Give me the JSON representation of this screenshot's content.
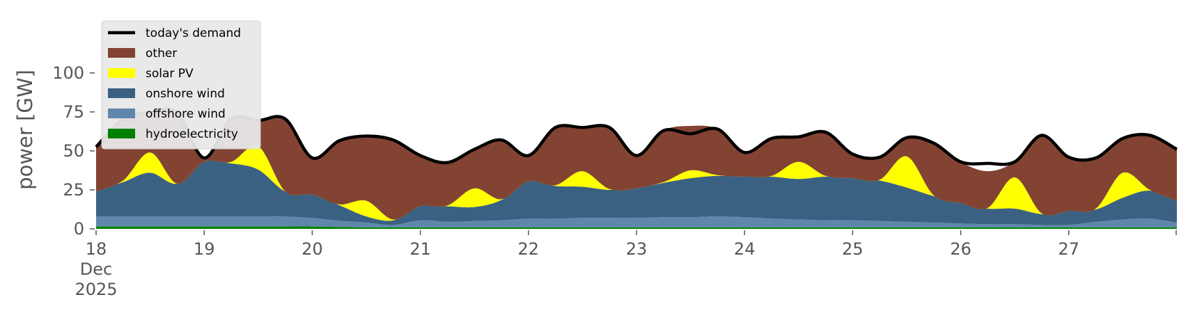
{
  "chart_data": {
    "type": "area",
    "title": "",
    "xlabel": "",
    "ylabel": "power [GW]",
    "ylim": [
      0,
      120
    ],
    "yticks": [
      0,
      25,
      50,
      75,
      100
    ],
    "xlim": [
      "2025-12-18T00:00",
      "2025-12-28T00:00"
    ],
    "xticks": [
      {
        "date": "2025-12-18",
        "label": "18",
        "sublabel1": "Dec",
        "sublabel2": "2025"
      },
      {
        "date": "2025-12-19",
        "label": "19"
      },
      {
        "date": "2025-12-20",
        "label": "20"
      },
      {
        "date": "2025-12-21",
        "label": "21"
      },
      {
        "date": "2025-12-22",
        "label": "22"
      },
      {
        "date": "2025-12-23",
        "label": "23"
      },
      {
        "date": "2025-12-24",
        "label": "24"
      },
      {
        "date": "2025-12-25",
        "label": "25"
      },
      {
        "date": "2025-12-26",
        "label": "26"
      },
      {
        "date": "2025-12-27",
        "label": "27"
      }
    ],
    "grid": false,
    "legend_position": "top-left",
    "x": [
      "2025-12-18T00:00",
      "2025-12-18T06:00",
      "2025-12-18T12:00",
      "2025-12-18T18:00",
      "2025-12-19T00:00",
      "2025-12-19T06:00",
      "2025-12-19T12:00",
      "2025-12-19T18:00",
      "2025-12-20T00:00",
      "2025-12-20T06:00",
      "2025-12-20T12:00",
      "2025-12-20T18:00",
      "2025-12-21T00:00",
      "2025-12-21T06:00",
      "2025-12-21T12:00",
      "2025-12-21T18:00",
      "2025-12-22T00:00",
      "2025-12-22T06:00",
      "2025-12-22T12:00",
      "2025-12-22T18:00",
      "2025-12-23T00:00",
      "2025-12-23T06:00",
      "2025-12-23T12:00",
      "2025-12-23T18:00",
      "2025-12-24T00:00",
      "2025-12-24T06:00",
      "2025-12-24T12:00",
      "2025-12-24T18:00",
      "2025-12-25T00:00",
      "2025-12-25T06:00",
      "2025-12-25T12:00",
      "2025-12-25T18:00",
      "2025-12-26T00:00",
      "2025-12-26T06:00",
      "2025-12-26T12:00",
      "2025-12-26T18:00",
      "2025-12-27T00:00",
      "2025-12-27T06:00",
      "2025-12-27T12:00",
      "2025-12-27T18:00",
      "2025-12-28T00:00"
    ],
    "series": [
      {
        "name": "hydroelectricity",
        "color": "#008000",
        "kind": "area",
        "values": [
          1.5,
          1.5,
          1.5,
          1.5,
          1.5,
          1.5,
          1.5,
          1.5,
          1.5,
          1.2,
          1.0,
          1.0,
          1.0,
          1.0,
          1.0,
          1.0,
          1.0,
          1.0,
          1.0,
          1.0,
          1.0,
          1.0,
          1.0,
          1.0,
          1.0,
          1.0,
          1.0,
          1.0,
          1.0,
          1.0,
          1.0,
          1.0,
          1.0,
          1.0,
          1.0,
          1.0,
          1.0,
          1.0,
          1.0,
          1.0,
          1.0
        ]
      },
      {
        "name": "offshore wind",
        "color": "#5f87ab",
        "kind": "area",
        "values": [
          6.5,
          6.5,
          6.5,
          6.5,
          6.5,
          6.5,
          6.5,
          6.5,
          5.5,
          4.0,
          3.0,
          1.5,
          4.5,
          3.5,
          4.0,
          4.5,
          5.5,
          5.5,
          6.0,
          6.0,
          6.0,
          6.5,
          6.5,
          7.0,
          6.5,
          5.5,
          5.0,
          4.5,
          4.5,
          4.0,
          3.5,
          3.0,
          2.5,
          2.0,
          2.0,
          1.5,
          1.5,
          3.5,
          5.0,
          5.5,
          3.0
        ]
      },
      {
        "name": "onshore wind",
        "color": "#3b6182",
        "kind": "area",
        "values": [
          16,
          22,
          28,
          21,
          35,
          34,
          30,
          16,
          15,
          10,
          4,
          3,
          9,
          10,
          9,
          13,
          24,
          21,
          20,
          18,
          19,
          22,
          25,
          26,
          26,
          27,
          26,
          28,
          27,
          26,
          22,
          17,
          13,
          10,
          10,
          7,
          9,
          8,
          14,
          18,
          14
        ]
      },
      {
        "name": "solar PV",
        "color": "#ffff00",
        "kind": "area",
        "values": [
          0,
          1,
          13,
          0,
          0,
          1,
          15,
          0,
          0,
          0.5,
          10,
          0.5,
          0,
          0.5,
          12,
          0.5,
          0,
          0.5,
          10,
          0.5,
          0,
          0.5,
          5,
          0.5,
          0,
          0.5,
          11,
          0.5,
          0,
          0.5,
          20,
          0.5,
          0,
          0.5,
          20,
          0.5,
          0,
          0.5,
          16,
          0.5,
          0
        ]
      },
      {
        "name": "other",
        "color": "#834333",
        "kind": "area",
        "values": [
          28.5,
          40.5,
          25.5,
          45.5,
          2.5,
          28.5,
          15.5,
          46.5,
          23.5,
          40.5,
          40.5,
          51.0,
          32.5,
          27.5,
          25.0,
          38.0,
          16.5,
          38.0,
          28.0,
          39.5,
          21.0,
          33.0,
          28.5,
          29.5,
          15.5,
          24.0,
          16.0,
          28.0,
          15.5,
          14.5,
          12.0,
          34.5,
          26.5,
          23.5,
          10.0,
          50.0,
          34.5,
          33.0,
          22.0,
          35.0,
          33.0
        ]
      },
      {
        "name": "today's demand",
        "color": "#000000",
        "kind": "line",
        "values": [
          52.5,
          70.5,
          74.5,
          74.5,
          45.5,
          70.5,
          69.5,
          70.5,
          45.5,
          56.5,
          59.5,
          57.0,
          47.0,
          42.5,
          51.0,
          57.0,
          47.0,
          65.0,
          65.0,
          65.0,
          47.0,
          63.0,
          61.0,
          64.0,
          49.0,
          58.0,
          59.0,
          62.0,
          48.0,
          46.0,
          58.5,
          55.0,
          43.0,
          42.0,
          43.0,
          60.0,
          46.0,
          45.5,
          58.0,
          60.0,
          51.0
        ]
      }
    ]
  }
}
